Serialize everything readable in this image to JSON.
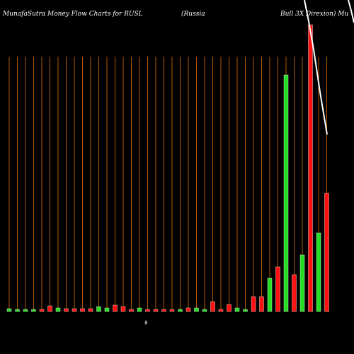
{
  "chart_data": {
    "type": "bar",
    "title_parts": [
      "MunafaSutra  Money Flow  Charts for RUSL",
      "(Russia",
      "Bull 3X  Direxion) Mu"
    ],
    "axis_label": "$",
    "categories": [
      null,
      null,
      null,
      null,
      null,
      null,
      null,
      null,
      null,
      null,
      null,
      null,
      null,
      null,
      null,
      null,
      null,
      null,
      null,
      null,
      null,
      null,
      null,
      null,
      null,
      null,
      null,
      null,
      null,
      null,
      null,
      null,
      null,
      null,
      null,
      null,
      null,
      null,
      null,
      null
    ],
    "values": [
      4,
      3,
      3,
      3,
      3,
      8,
      5,
      4,
      4,
      4,
      4,
      7,
      5,
      9,
      7,
      3,
      5,
      3,
      3,
      3,
      3,
      3,
      5,
      5,
      3,
      14,
      3,
      10,
      5,
      3,
      21,
      21,
      47,
      63,
      334,
      52,
      80,
      405,
      111,
      167
    ],
    "colors": [
      "#22dd22",
      "#22dd22",
      "#22dd22",
      "#22dd22",
      "#ff1111",
      "#ff1111",
      "#22dd22",
      "#ff1111",
      "#ff1111",
      "#ff1111",
      "#ff1111",
      "#22dd22",
      "#22dd22",
      "#ff1111",
      "#ff1111",
      "#ff1111",
      "#22dd22",
      "#ff1111",
      "#ff1111",
      "#ff1111",
      "#ff1111",
      "#22dd22",
      "#ff1111",
      "#22dd22",
      "#22dd22",
      "#ff1111",
      "#ff1111",
      "#ff1111",
      "#22dd22",
      "#22dd22",
      "#ff1111",
      "#ff1111",
      "#22dd22",
      "#ff1111",
      "#22dd22",
      "#ff1111",
      "#22dd22",
      "#ff1111",
      "#22dd22",
      "#ff1111"
    ],
    "ylim": [
      0,
      410
    ],
    "grid_color": "#b35900"
  }
}
